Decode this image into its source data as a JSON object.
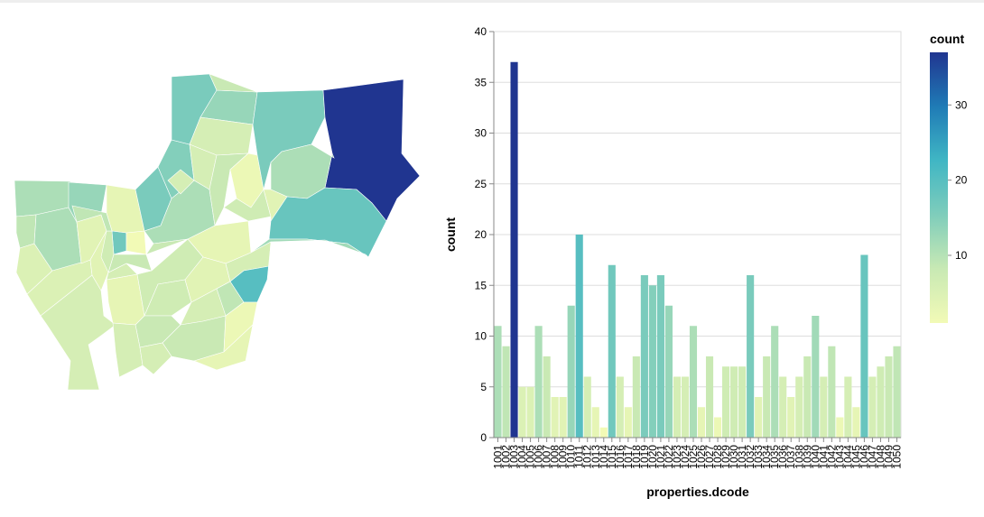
{
  "chart_data": [
    {
      "type": "choropleth",
      "feature_key": "properties.dcode",
      "value_field": "count",
      "color_scheme": "yellowgreenblue"
    },
    {
      "type": "bar",
      "x_field": "properties.dcode",
      "xlabel": "properties.dcode",
      "ylabel": "count",
      "ylim": [
        0,
        40
      ],
      "yticks": [
        0,
        5,
        10,
        15,
        20,
        25,
        30,
        35,
        40
      ],
      "grid": true,
      "categories": [
        "1001",
        "1002",
        "1003",
        "1004",
        "1005",
        "1006",
        "1007",
        "1008",
        "1009",
        "1010",
        "1011",
        "1012",
        "1013",
        "1014",
        "1015",
        "1016",
        "1017",
        "1018",
        "1019",
        "1020",
        "1021",
        "1022",
        "1023",
        "1024",
        "1025",
        "1026",
        "1027",
        "1028",
        "1029",
        "1030",
        "1031",
        "1032",
        "1033",
        "1034",
        "1035",
        "1036",
        "1037",
        "1038",
        "1039",
        "1040",
        "1041",
        "1042",
        "1043",
        "1044",
        "1045",
        "1046",
        "1047",
        "1048",
        "1049",
        "1050"
      ],
      "values": [
        11,
        9,
        37,
        5,
        5,
        11,
        8,
        4,
        4,
        13,
        20,
        6,
        3,
        1,
        17,
        6,
        3,
        8,
        16,
        15,
        16,
        13,
        6,
        6,
        11,
        3,
        8,
        2,
        7,
        7,
        7,
        16,
        4,
        8,
        11,
        6,
        4,
        6,
        8,
        12,
        6,
        9,
        2,
        6,
        3,
        18,
        6,
        7,
        8,
        9
      ]
    }
  ],
  "legend": {
    "title": "count",
    "ticks": [
      "10",
      "20",
      "30"
    ],
    "min": 1,
    "max": 37
  }
}
